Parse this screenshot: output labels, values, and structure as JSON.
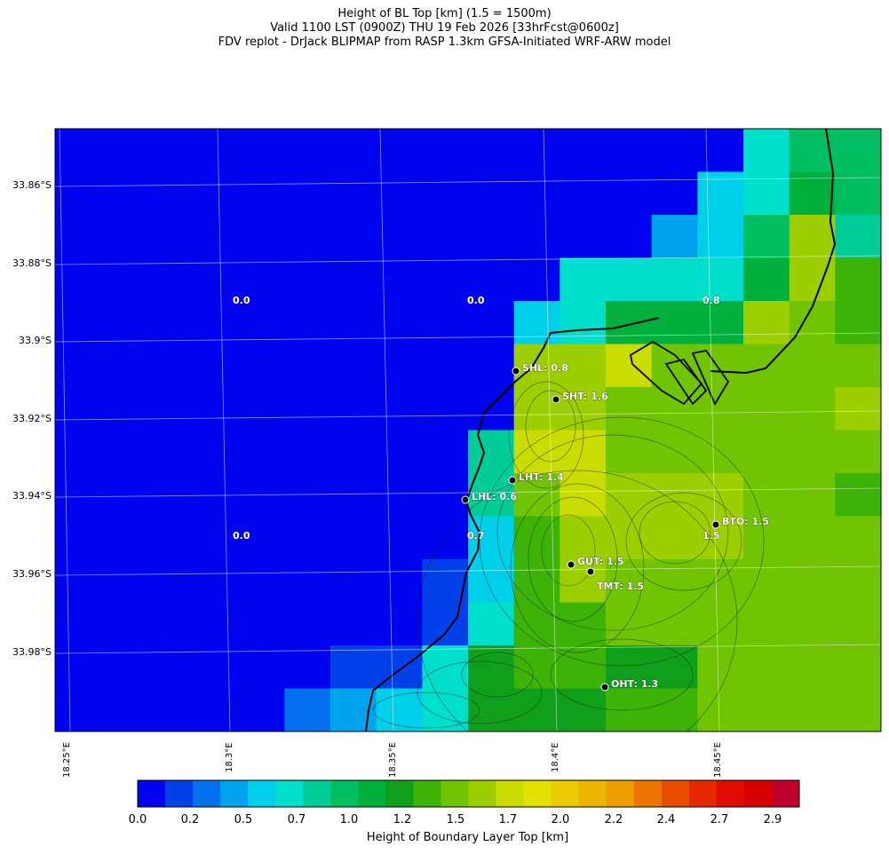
{
  "title": {
    "line1": "Height of BL Top [km] (1.5 = 1500m)",
    "line2": "Valid 1100 LST (0900Z) THU 19 Feb 2026 [33hrFcst@0600z]",
    "line3": "FDV replot - DrJack BLIPMAP from RASP 1.3km GFSA-Initiated WRF-ARW model"
  },
  "map": {
    "lat_labels": [
      "33.86°S",
      "33.88°S",
      "33.9°S",
      "33.92°S",
      "33.94°S",
      "33.96°S",
      "33.98°S"
    ],
    "lon_labels": [
      "18.25°E",
      "18.3°E",
      "18.35°E",
      "18.4°E",
      "18.45°E"
    ],
    "value_labels": [
      "0.0",
      "0.0",
      "0.8",
      "0.0",
      "0.7",
      "1.5"
    ],
    "stations": [
      {
        "label": "SHL: 0.8"
      },
      {
        "label": "SHT: 1.6"
      },
      {
        "label": "LHT: 1.4"
      },
      {
        "label": "LHL: 0.6"
      },
      {
        "label": "BTO: 1.5"
      },
      {
        "label": "GUT: 1.5"
      },
      {
        "label": "TMT: 1.5"
      },
      {
        "label": "OHT: 1.3"
      }
    ],
    "grid_values": [
      [
        0.0,
        0.0,
        0.0,
        0.0,
        0.0,
        0.0,
        0.0,
        0.0,
        0.0,
        0.0,
        0.0,
        0.0,
        0.0,
        0.0,
        0.0,
        0.7,
        0.9,
        0.9
      ],
      [
        0.0,
        0.0,
        0.0,
        0.0,
        0.0,
        0.0,
        0.0,
        0.0,
        0.0,
        0.0,
        0.0,
        0.0,
        0.0,
        0.0,
        0.6,
        0.7,
        1.0,
        0.9
      ],
      [
        0.0,
        0.0,
        0.0,
        0.0,
        0.0,
        0.0,
        0.0,
        0.0,
        0.0,
        0.0,
        0.0,
        0.0,
        0.0,
        0.4,
        0.6,
        0.9,
        1.6,
        0.8
      ],
      [
        0.0,
        0.0,
        0.0,
        0.0,
        0.0,
        0.0,
        0.0,
        0.0,
        0.0,
        0.0,
        0.0,
        0.7,
        0.7,
        0.7,
        0.7,
        1.0,
        1.6,
        1.3
      ],
      [
        0.0,
        0.0,
        0.0,
        0.0,
        0.0,
        0.0,
        0.0,
        0.0,
        0.0,
        0.0,
        0.5,
        0.7,
        1.0,
        1.0,
        1.0,
        1.6,
        1.4,
        1.3
      ],
      [
        0.0,
        0.0,
        0.0,
        0.0,
        0.0,
        0.0,
        0.0,
        0.0,
        0.0,
        0.0,
        1.6,
        1.6,
        1.7,
        1.4,
        1.4,
        1.4,
        1.4,
        1.4
      ],
      [
        0.0,
        0.0,
        0.0,
        0.0,
        0.0,
        0.0,
        0.0,
        0.0,
        0.0,
        0.0,
        1.6,
        1.6,
        1.4,
        1.4,
        1.4,
        1.4,
        1.4,
        1.6
      ],
      [
        0.0,
        0.0,
        0.0,
        0.0,
        0.0,
        0.0,
        0.0,
        0.0,
        0.0,
        0.8,
        1.7,
        1.7,
        1.4,
        1.4,
        1.4,
        1.4,
        1.4,
        1.4
      ],
      [
        0.0,
        0.0,
        0.0,
        0.0,
        0.0,
        0.0,
        0.0,
        0.0,
        0.1,
        0.8,
        1.4,
        1.7,
        1.6,
        1.6,
        1.6,
        1.4,
        1.4,
        1.3
      ],
      [
        0.0,
        0.0,
        0.0,
        0.0,
        0.0,
        0.0,
        0.0,
        0.0,
        0.1,
        0.6,
        1.3,
        1.6,
        1.6,
        1.6,
        1.6,
        1.4,
        1.4,
        1.4
      ],
      [
        0.0,
        0.0,
        0.0,
        0.0,
        0.0,
        0.0,
        0.0,
        0.1,
        0.2,
        0.6,
        1.3,
        1.6,
        1.4,
        1.4,
        1.4,
        1.4,
        1.4,
        1.4
      ],
      [
        0.0,
        0.0,
        0.0,
        0.0,
        0.0,
        0.0,
        0.1,
        0.1,
        0.2,
        0.7,
        1.3,
        1.3,
        1.4,
        1.4,
        1.4,
        1.4,
        1.4,
        1.4
      ],
      [
        0.0,
        0.0,
        0.0,
        0.0,
        0.0,
        0.1,
        0.2,
        0.2,
        0.7,
        1.2,
        1.3,
        1.3,
        1.2,
        1.2,
        1.4,
        1.4,
        1.4,
        1.4
      ],
      [
        0.0,
        0.0,
        0.0,
        0.0,
        0.0,
        0.3,
        0.4,
        0.6,
        0.7,
        1.2,
        1.2,
        1.2,
        1.3,
        1.3,
        1.4,
        1.4,
        1.4,
        1.4
      ]
    ]
  },
  "colorbar": {
    "title": "Height of Boundary Layer Top [km]",
    "ticks": [
      "0.0",
      "0.2",
      "0.5",
      "0.7",
      "1.0",
      "1.2",
      "1.5",
      "1.7",
      "2.0",
      "2.2",
      "2.4",
      "2.7",
      "2.9"
    ],
    "colors": [
      "#0004ee",
      "#0440ea",
      "#0570ee",
      "#00a4ee",
      "#00cfea",
      "#00dfcc",
      "#00cc98",
      "#00bf60",
      "#00b03d",
      "#109f1a",
      "#3db308",
      "#70c402",
      "#9dcf00",
      "#cbdd00",
      "#e4e000",
      "#ecca00",
      "#edb400",
      "#ec9e00",
      "#ec7600",
      "#e94e00",
      "#e52a00",
      "#e10a00",
      "#d80000",
      "#c0002a"
    ]
  }
}
